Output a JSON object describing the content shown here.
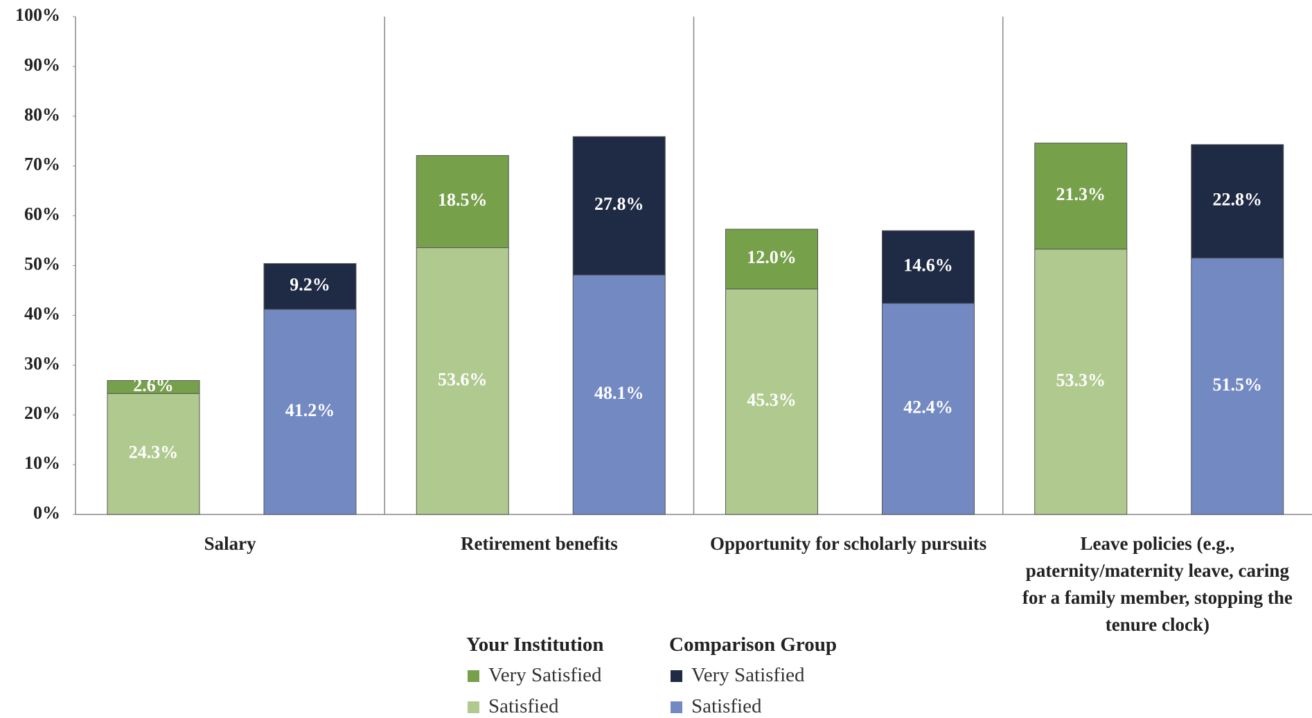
{
  "chart_data": {
    "type": "bar",
    "stacked": true,
    "categories": [
      "Salary",
      "Retirement benefits",
      "Opportunity for scholarly pursuits",
      "Leave policies (e.g., paternity/maternity leave, caring for a family member, stopping the tenure clock)"
    ],
    "groups": [
      {
        "name": "Your Institution",
        "series": [
          {
            "name": "Very Satisfied",
            "color": "#76a04a",
            "values": [
              2.6,
              18.5,
              12.0,
              21.3
            ],
            "value_labels": [
              "2.6%",
              "18.5%",
              "12.0%",
              "21.3%"
            ]
          },
          {
            "name": "Satisfied",
            "color": "#b0c98e",
            "values": [
              24.3,
              53.6,
              45.3,
              53.3
            ],
            "value_labels": [
              "24.3%",
              "53.6%",
              "45.3%",
              "53.3%"
            ]
          }
        ]
      },
      {
        "name": "Comparison Group",
        "series": [
          {
            "name": "Very Satisfied",
            "color": "#1f2a44",
            "values": [
              9.2,
              27.8,
              14.6,
              22.8
            ],
            "value_labels": [
              "9.2%",
              "27.8%",
              "14.6%",
              "22.8%"
            ]
          },
          {
            "name": "Satisfied",
            "color": "#7389c2",
            "values": [
              41.2,
              48.1,
              42.4,
              51.5
            ],
            "value_labels": [
              "41.2%",
              "48.1%",
              "42.4%",
              "51.5%"
            ]
          }
        ]
      }
    ],
    "ylim": [
      0,
      100
    ],
    "yticks": [
      {
        "value": 0,
        "label": "0%"
      },
      {
        "value": 10,
        "label": "10%"
      },
      {
        "value": 20,
        "label": "20%"
      },
      {
        "value": 30,
        "label": "30%"
      },
      {
        "value": 40,
        "label": "40%"
      },
      {
        "value": 50,
        "label": "50%"
      },
      {
        "value": 60,
        "label": "60%"
      },
      {
        "value": 70,
        "label": "70%"
      },
      {
        "value": 80,
        "label": "80%"
      },
      {
        "value": 90,
        "label": "90%"
      },
      {
        "value": 100,
        "label": "100%"
      }
    ]
  }
}
